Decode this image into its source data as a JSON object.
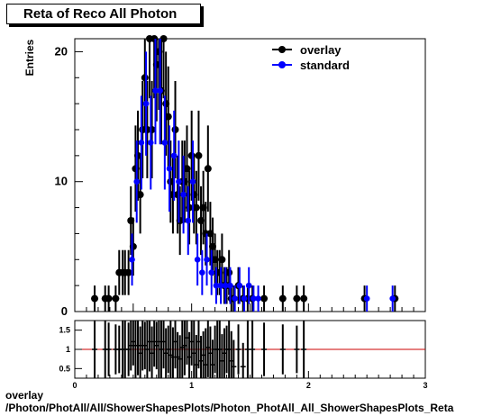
{
  "chart_data": [
    {
      "type": "scatter",
      "title": "Reta of Reco All Photon",
      "ylabel": "Entries",
      "xlabel": "",
      "xlim": [
        0,
        3
      ],
      "ylim": [
        0,
        21
      ],
      "yticks": [
        0,
        10,
        20
      ],
      "legend": {
        "placement": "top-right"
      },
      "series": [
        {
          "name": "overlay",
          "color": "#000000",
          "x": [
            0.17,
            0.26,
            0.29,
            0.35,
            0.38,
            0.41,
            0.43,
            0.46,
            0.48,
            0.5,
            0.52,
            0.54,
            0.56,
            0.58,
            0.6,
            0.62,
            0.64,
            0.66,
            0.68,
            0.7,
            0.72,
            0.74,
            0.76,
            0.78,
            0.8,
            0.82,
            0.84,
            0.86,
            0.88,
            0.9,
            0.92,
            0.94,
            0.96,
            0.98,
            1.0,
            1.02,
            1.04,
            1.06,
            1.08,
            1.1,
            1.12,
            1.14,
            1.16,
            1.18,
            1.2,
            1.22,
            1.24,
            1.26,
            1.28,
            1.3,
            1.32,
            1.34,
            1.36,
            1.4,
            1.44,
            1.48,
            1.52,
            1.62,
            1.78,
            1.9,
            1.96,
            2.48,
            2.74
          ],
          "y": [
            1,
            1,
            1,
            1,
            3,
            3,
            3,
            3,
            7,
            5,
            11,
            12,
            9,
            14,
            18,
            14,
            21,
            14,
            21,
            19,
            20,
            17,
            21,
            16,
            15,
            10,
            9,
            14,
            9,
            7,
            10,
            10,
            11,
            8,
            12,
            9,
            8,
            12,
            7,
            8,
            6,
            11,
            6,
            5,
            4,
            3,
            3,
            4,
            2,
            2,
            3,
            1,
            1,
            2,
            1,
            1,
            1,
            1,
            1,
            1,
            1,
            1,
            1
          ]
        },
        {
          "name": "standard",
          "color": "#0000ff",
          "x": [
            0.49,
            0.53,
            0.57,
            0.61,
            0.65,
            0.69,
            0.73,
            0.77,
            0.81,
            0.85,
            0.89,
            0.93,
            0.97,
            1.01,
            1.05,
            1.09,
            1.13,
            1.17,
            1.21,
            1.25,
            1.29,
            1.33,
            1.37,
            1.41,
            1.45,
            1.49,
            1.53,
            1.57,
            2.5,
            2.72
          ],
          "y": [
            4,
            10,
            13,
            16,
            13,
            17,
            17,
            13,
            11,
            12,
            10,
            9,
            7,
            10,
            4,
            3,
            4,
            3,
            2,
            2,
            2,
            2,
            1,
            2,
            1,
            2,
            1,
            1,
            1,
            1
          ]
        }
      ]
    },
    {
      "type": "scatter",
      "title": "",
      "xlabel": "",
      "ylabel": "",
      "xlim": [
        0,
        3
      ],
      "ylim": [
        0.25,
        1.75
      ],
      "xticks": [
        0,
        1,
        2,
        3
      ],
      "yticks": [
        0.5,
        1,
        1.5
      ],
      "reference_line": {
        "y": 1,
        "color": "#cc0000"
      },
      "series": [
        {
          "name": "",
          "color": "#000000",
          "x": [
            0.17,
            0.26,
            0.29,
            0.35,
            0.38,
            0.41,
            0.43,
            0.46,
            0.48,
            0.5,
            0.52,
            0.54,
            0.56,
            0.58,
            0.6,
            0.62,
            0.64,
            0.66,
            0.68,
            0.7,
            0.72,
            0.74,
            0.76,
            0.78,
            0.8,
            0.82,
            0.84,
            0.86,
            0.88,
            0.9,
            0.92,
            0.94,
            0.96,
            0.98,
            1.0,
            1.02,
            1.04,
            1.06,
            1.08,
            1.1,
            1.12,
            1.14,
            1.16,
            1.18,
            1.2,
            1.22,
            1.24,
            1.26,
            1.28,
            1.3,
            1.32,
            1.34,
            1.36,
            1.4,
            1.44,
            1.48,
            1.52,
            1.62,
            1.78,
            1.9,
            1.96
          ],
          "y": [
            1.0,
            1.0,
            1.0,
            1.0,
            1.0,
            1.0,
            1.0,
            1.0,
            1.1,
            1.2,
            1.1,
            1.1,
            0.9,
            1.1,
            1.1,
            1.0,
            1.2,
            0.9,
            1.2,
            1.1,
            1.2,
            1.0,
            1.2,
            0.9,
            1.0,
            0.85,
            0.8,
            1.2,
            0.8,
            0.75,
            1.05,
            1.1,
            1.3,
            0.8,
            1.2,
            0.9,
            0.6,
            1.2,
            0.7,
            0.85,
            0.6,
            1.05,
            0.9,
            0.6,
            1.0,
            1.0,
            1.0,
            0.7,
            0.9,
            1.0,
            1.0,
            0.7,
            0.55,
            1.0,
            0.55,
            1.0,
            1.0,
            1.0,
            1.0,
            1.0,
            1.0
          ]
        }
      ]
    }
  ],
  "footer": {
    "line1": "overlay",
    "line2": "/Photon/PhotAll/All/ShowerShapesPlots/Photon_PhotAll_All_ShowerShapesPlots_Reta"
  }
}
